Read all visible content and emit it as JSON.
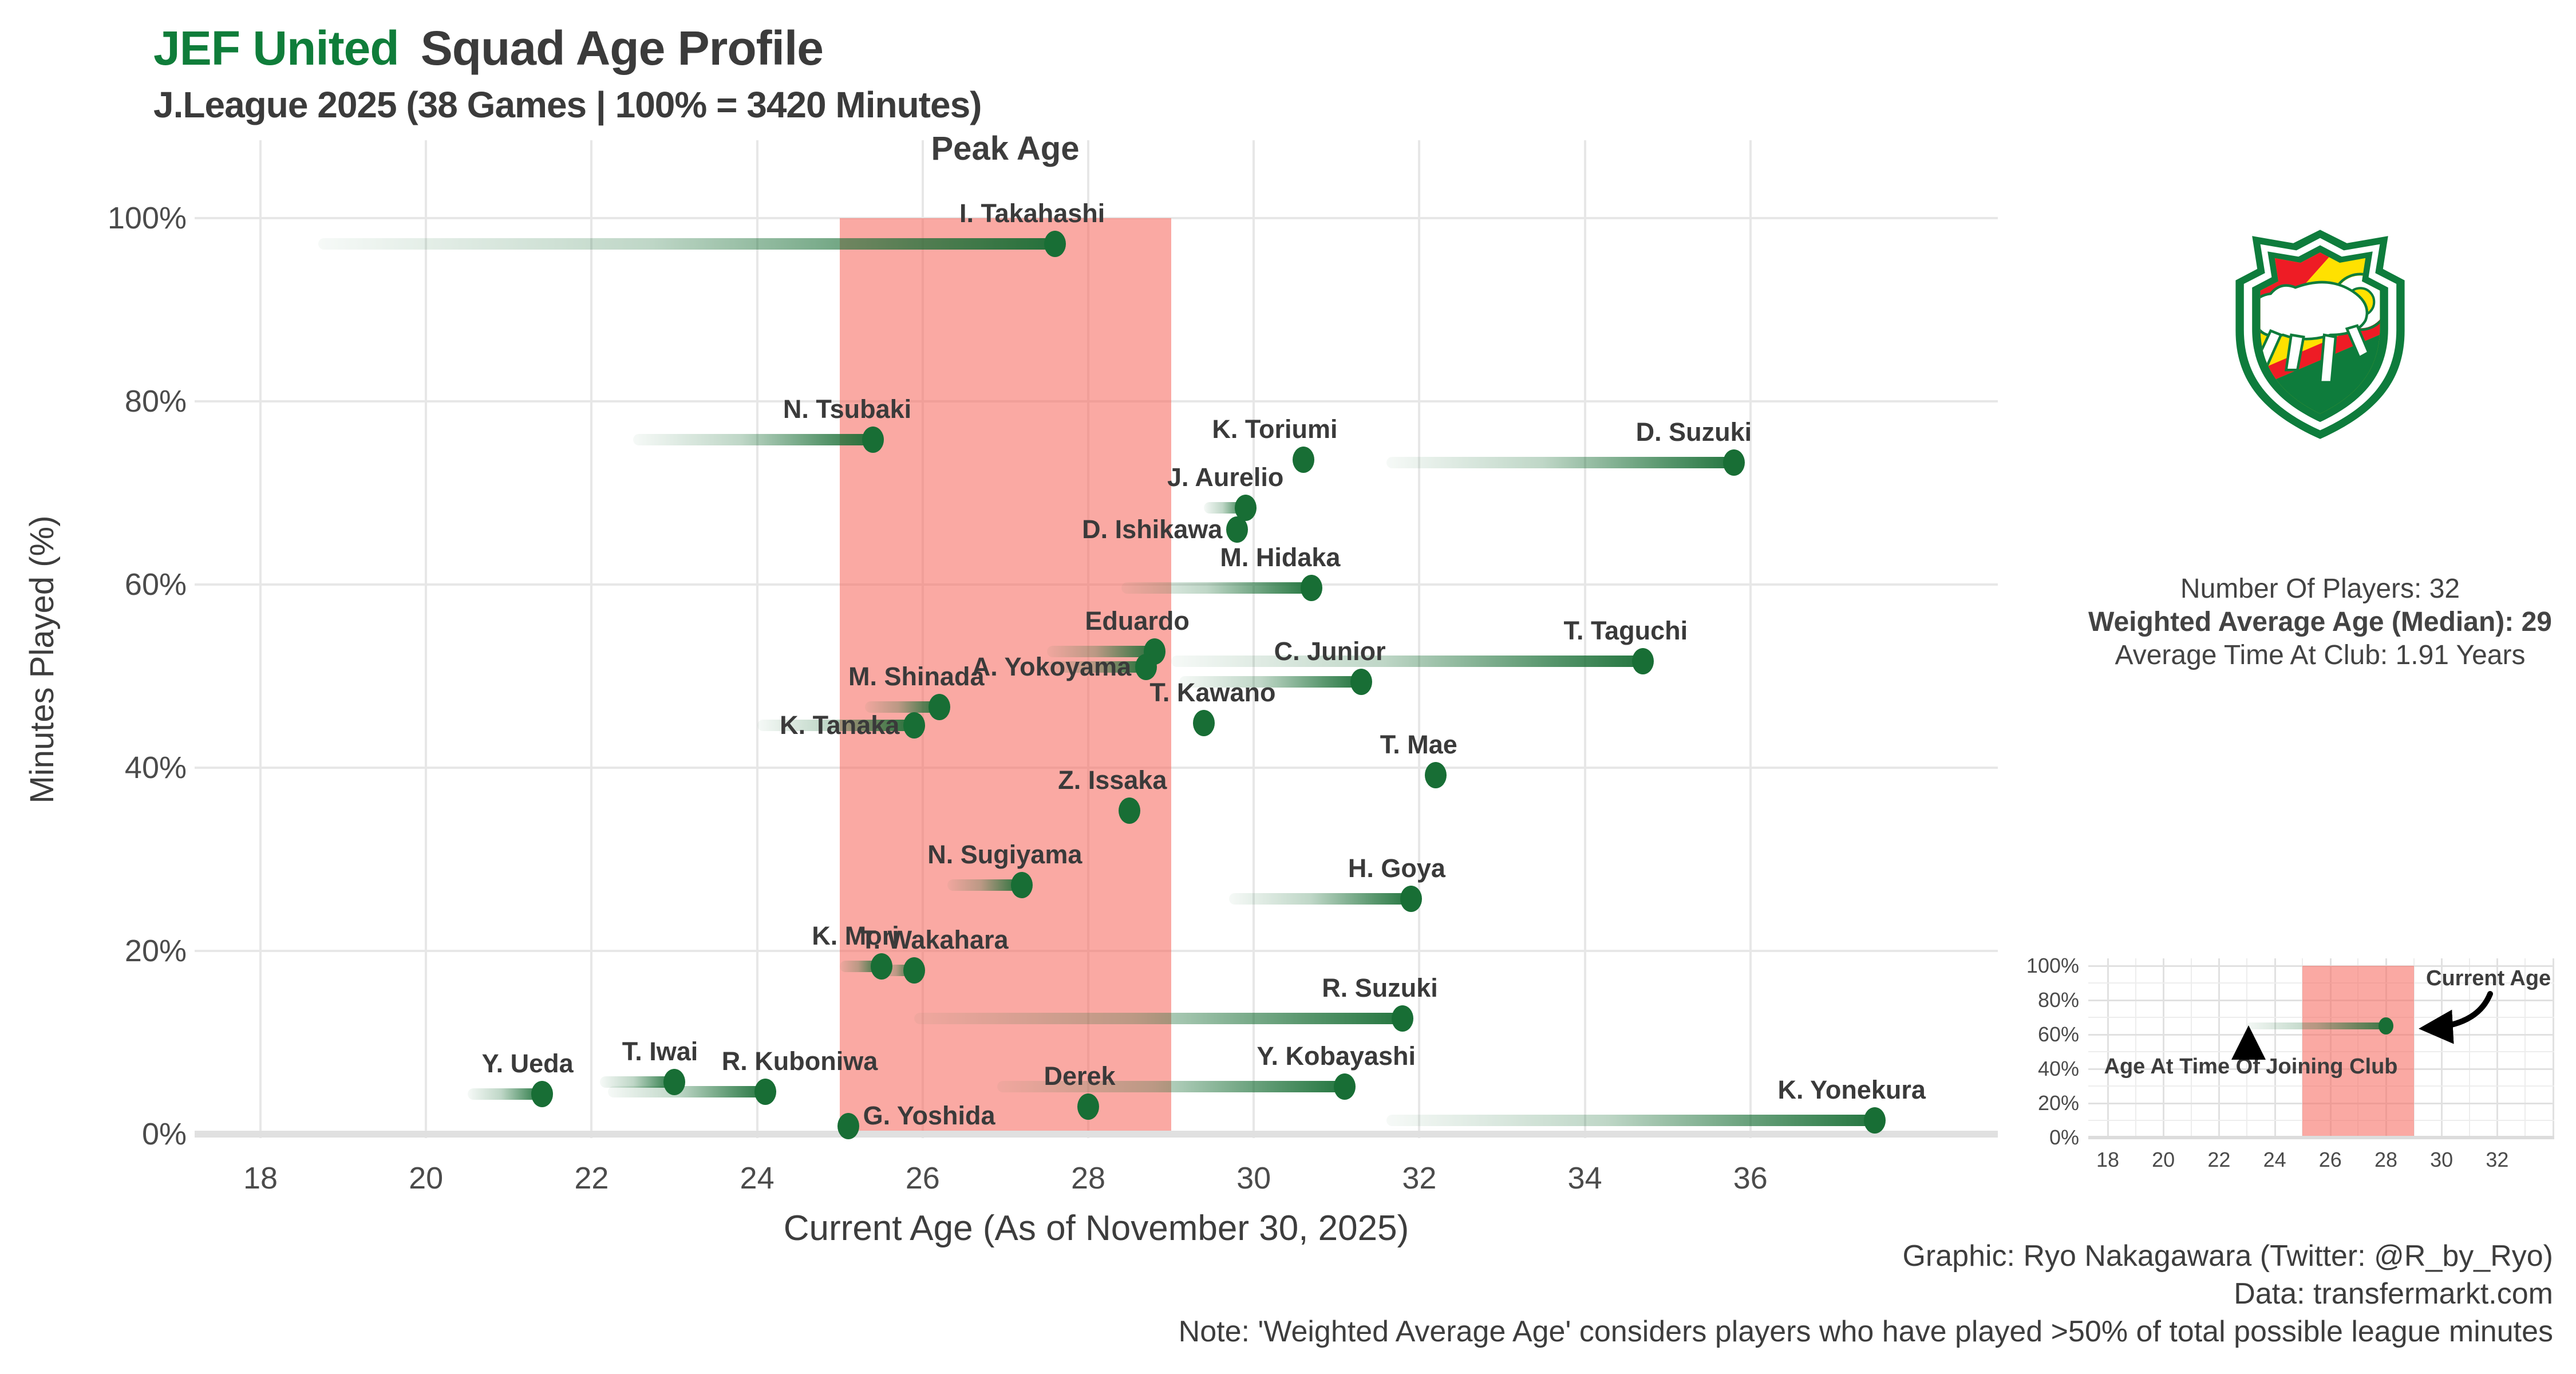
{
  "title": {
    "club": "JEF United",
    "rest": "Squad Age Profile"
  },
  "subtitle": "J.League 2025 (38 Games | 100% = 3420 Minutes)",
  "peak_age_label": "Peak Age",
  "axes": {
    "x_label": "Current Age (As of November 30, 2025)",
    "y_label": "Minutes Played (%)"
  },
  "stats": {
    "players": "Number Of Players: 32",
    "weighted": "Weighted Average Age (Median): 29",
    "avg_time": "Average Time At Club: 1.91 Years"
  },
  "footer": {
    "graphic": "Graphic: Ryo Nakagawara (Twitter: @R_by_Ryo)",
    "data": "Data: transfermarkt.com",
    "note": "Note: 'Weighted Average Age' considers players who have played >50% of total possible league minutes"
  },
  "colors": {
    "club_green": "#0f7d3a",
    "dot_green": "#186e35",
    "peak_band_pink": "#f67066",
    "gridline": "#e7e7e7",
    "text_dark": "#3b3b3b",
    "crest_red": "#ee1c25",
    "crest_yellow": "#ffe100"
  },
  "chart_data": {
    "type": "scatter",
    "title": "JEF United Squad Age Profile",
    "xlabel": "Current Age (As of November 30, 2025)",
    "ylabel": "Minutes Played (%)",
    "x_ticks": [
      18,
      20,
      22,
      24,
      26,
      28,
      30,
      32,
      34,
      36
    ],
    "y_ticks_pct": [
      0,
      20,
      40,
      60,
      80,
      100
    ],
    "x_range": [
      17.2,
      39.0
    ],
    "y_range_pct": [
      0,
      100
    ],
    "peak_age_band": [
      25,
      29
    ],
    "grid": true,
    "players": [
      {
        "name": "I. Takahashi",
        "age": 27.6,
        "joined": 18.7,
        "pct": 97.2,
        "label": "above",
        "dx": -40
      },
      {
        "name": "N. Tsubaki",
        "age": 25.4,
        "joined": 22.5,
        "pct": 75.8,
        "label": "above",
        "dx": -45
      },
      {
        "name": "K. Toriumi",
        "age": 30.6,
        "joined": 30.6,
        "pct": 73.6,
        "label": "above",
        "dx": -50
      },
      {
        "name": "D. Suzuki",
        "age": 35.8,
        "joined": 31.6,
        "pct": 73.3,
        "label": "above",
        "dx": -70
      },
      {
        "name": "J. Aurelio",
        "age": 29.9,
        "joined": 29.4,
        "pct": 68.4,
        "label": "above",
        "dx": -35
      },
      {
        "name": "D. Ishikawa",
        "age": 29.8,
        "joined": 29.8,
        "pct": 66.0,
        "label": "left"
      },
      {
        "name": "M. Hidaka",
        "age": 30.7,
        "joined": 28.4,
        "pct": 59.6,
        "label": "above",
        "dx": -55
      },
      {
        "name": "Eduardo",
        "age": 28.8,
        "joined": 27.5,
        "pct": 52.7,
        "label": "above",
        "dx": -30
      },
      {
        "name": "T. Taguchi",
        "age": 34.7,
        "joined": 29.0,
        "pct": 51.6,
        "label": "above",
        "dx": -30
      },
      {
        "name": "A. Yokoyama",
        "age": 28.7,
        "joined": 27.5,
        "pct": 51.0,
        "label": "left"
      },
      {
        "name": "C. Junior",
        "age": 31.3,
        "joined": 29.1,
        "pct": 49.4,
        "label": "above",
        "dx": -55
      },
      {
        "name": "M. Shinada",
        "age": 26.2,
        "joined": 25.3,
        "pct": 46.6,
        "label": "above",
        "dx": -40
      },
      {
        "name": "T. Kawano",
        "age": 29.4,
        "joined": 29.4,
        "pct": 44.9,
        "label": "above",
        "dx": 15
      },
      {
        "name": "K. Tanaka",
        "age": 25.9,
        "joined": 24.0,
        "pct": 44.6,
        "label": "left"
      },
      {
        "name": "T. Mae",
        "age": 32.2,
        "joined": 32.2,
        "pct": 39.2,
        "label": "above",
        "dx": -30
      },
      {
        "name": "Z. Issaka",
        "age": 28.5,
        "joined": 28.5,
        "pct": 35.3,
        "label": "above",
        "dx": -30
      },
      {
        "name": "N. Sugiyama",
        "age": 27.2,
        "joined": 26.3,
        "pct": 27.2,
        "label": "above",
        "dx": -30
      },
      {
        "name": "H. Goya",
        "age": 31.9,
        "joined": 29.7,
        "pct": 25.7,
        "label": "above",
        "dx": -25
      },
      {
        "name": "K. Mori",
        "age": 25.5,
        "joined": 25.0,
        "pct": 18.3,
        "label": "above",
        "dx": -45
      },
      {
        "name": "T. Wakahara",
        "age": 25.9,
        "joined": 25.5,
        "pct": 17.9,
        "label": "above",
        "dx": 35
      },
      {
        "name": "R. Suzuki",
        "age": 31.8,
        "joined": 25.9,
        "pct": 12.6,
        "label": "above",
        "dx": -40
      },
      {
        "name": "T. Iwai",
        "age": 23.0,
        "joined": 22.1,
        "pct": 5.7,
        "label": "above",
        "dx": -25
      },
      {
        "name": "Y. Kobayashi",
        "age": 31.1,
        "joined": 26.9,
        "pct": 5.2,
        "label": "above",
        "dx": -15
      },
      {
        "name": "R. Kuboniwa",
        "age": 24.1,
        "joined": 22.2,
        "pct": 4.6,
        "label": "above",
        "dx": 60
      },
      {
        "name": "Y. Ueda",
        "age": 21.4,
        "joined": 20.5,
        "pct": 4.4,
        "label": "above",
        "dx": -25
      },
      {
        "name": "Derek",
        "age": 28.0,
        "joined": 28.0,
        "pct": 3.0,
        "label": "above",
        "dx": -15
      },
      {
        "name": "K. Yonekura",
        "age": 37.5,
        "joined": 31.6,
        "pct": 1.5,
        "label": "above",
        "dx": -40
      },
      {
        "name": "G. Yoshida",
        "age": 25.1,
        "joined": 25.1,
        "pct": 0.9,
        "label": "right",
        "dy": -18
      }
    ]
  },
  "legend_inset": {
    "x_ticks": [
      18,
      20,
      22,
      24,
      26,
      28,
      30,
      32
    ],
    "y_ticks_pct": [
      0,
      20,
      40,
      60,
      80,
      100
    ],
    "peak_age_band": [
      25,
      29
    ],
    "example": {
      "joined": 23,
      "age": 28,
      "pct": 65
    },
    "current_age_label": "Current Age",
    "joining_label": "Age At Time Of Joining Club"
  }
}
